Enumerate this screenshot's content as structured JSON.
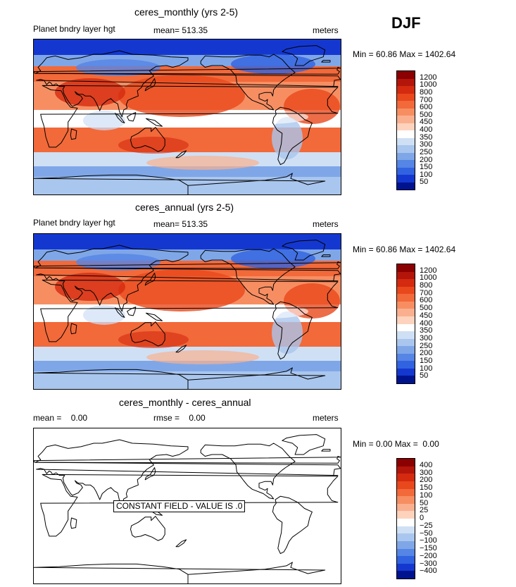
{
  "season": "DJF",
  "panels": [
    {
      "title": "ceres_monthly (yrs 2-5)",
      "left_label": "Planet bndry layer hgt",
      "mean_label": "mean=",
      "mean_value": "513.35",
      "units": "meters",
      "min_label": "Min =",
      "min_value": "60.86",
      "max_label": "Max =",
      "max_value": "1402.64"
    },
    {
      "title": "ceres_annual (yrs 2-5)",
      "left_label": "Planet bndry layer hgt",
      "mean_label": "mean=",
      "mean_value": "513.35",
      "units": "meters",
      "min_label": "Min =",
      "min_value": "60.86",
      "max_label": "Max =",
      "max_value": "1402.64"
    },
    {
      "title": "ceres_monthly - ceres_annual",
      "mean_label": "mean =",
      "mean_value": "0.00",
      "rmse_label": "rmse =",
      "rmse_value": "0.00",
      "units": "meters",
      "min_label": "Min =",
      "min_value": "0.00",
      "max_label": "Max =",
      "max_value": "0.00",
      "note": "CONSTANT FIELD - VALUE IS .0"
    }
  ],
  "colorbar_main": {
    "labels": [
      "1200",
      "1000",
      "800",
      "700",
      "600",
      "500",
      "450",
      "400",
      "350",
      "300",
      "250",
      "200",
      "150",
      "100",
      "50"
    ],
    "colors": [
      "#8b0000",
      "#b3150a",
      "#d42a0f",
      "#e8481c",
      "#f2693a",
      "#f78e62",
      "#fab08e",
      "#fdd3bd",
      "#ffffff",
      "#cfe0f5",
      "#a9c6ee",
      "#7fa7e8",
      "#5585e5",
      "#3163e0",
      "#1438cf",
      "#00138f"
    ]
  },
  "colorbar_diff": {
    "labels": [
      "400",
      "300",
      "200",
      "150",
      "100",
      "50",
      "25",
      "0",
      "−25",
      "−50",
      "−100",
      "−150",
      "−200",
      "−300",
      "−400"
    ],
    "colors": [
      "#8b0000",
      "#b3150a",
      "#d42a0f",
      "#e8481c",
      "#f2693a",
      "#f78e62",
      "#fab08e",
      "#fdd3bd",
      "#ffffff",
      "#cfe0f5",
      "#a9c6ee",
      "#7fa7e8",
      "#5585e5",
      "#3163e0",
      "#1438cf",
      "#00138f"
    ]
  }
}
